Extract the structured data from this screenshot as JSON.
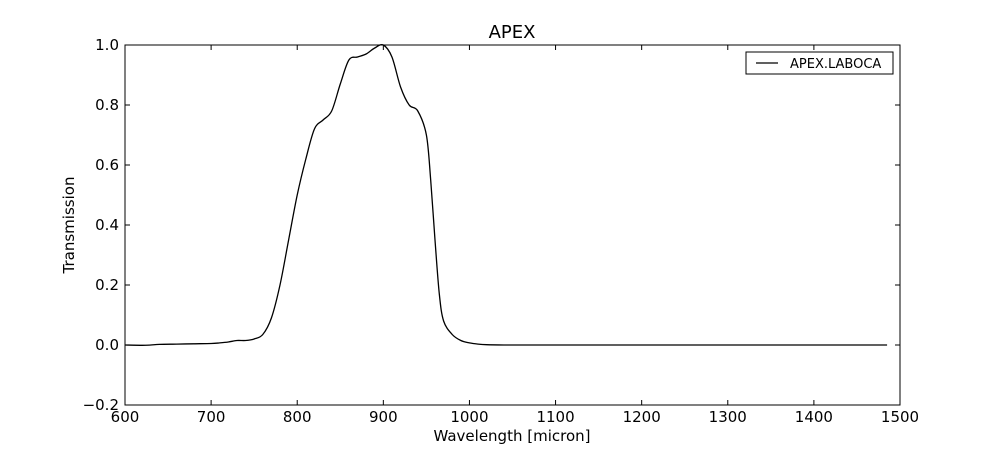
{
  "chart_data": {
    "type": "line",
    "title": "APEX",
    "xlabel": "Wavelength [micron]",
    "ylabel": "Transmission",
    "xlim": [
      600,
      1500
    ],
    "ylim": [
      -0.2,
      1.0
    ],
    "xticks": [
      "600",
      "700",
      "800",
      "900",
      "1000",
      "1100",
      "1200",
      "1300",
      "1400",
      "1500"
    ],
    "yticks": [
      "−0.2",
      "0.0",
      "0.2",
      "0.4",
      "0.6",
      "0.8",
      "1.0"
    ],
    "grid": false,
    "legend_position": "top-right",
    "series": [
      {
        "name": "APEX.LABOCA",
        "color": "#000000",
        "x": [
          600,
          620,
          630,
          640,
          660,
          680,
          700,
          710,
          720,
          730,
          740,
          750,
          760,
          770,
          780,
          790,
          800,
          810,
          820,
          830,
          840,
          850,
          860,
          870,
          880,
          890,
          900,
          910,
          920,
          930,
          940,
          950,
          955,
          960,
          965,
          970,
          980,
          990,
          1000,
          1010,
          1020,
          1040,
          1060,
          1100,
          1200,
          1300,
          1400,
          1485
        ],
        "y": [
          0.0,
          -0.001,
          0.0,
          0.002,
          0.003,
          0.004,
          0.005,
          0.007,
          0.01,
          0.015,
          0.015,
          0.02,
          0.035,
          0.09,
          0.2,
          0.35,
          0.5,
          0.62,
          0.72,
          0.75,
          0.78,
          0.87,
          0.95,
          0.96,
          0.97,
          0.99,
          1.0,
          0.96,
          0.86,
          0.8,
          0.78,
          0.7,
          0.55,
          0.35,
          0.17,
          0.08,
          0.035,
          0.015,
          0.007,
          0.003,
          0.001,
          0.0,
          0.0,
          0.0,
          0.0,
          0.0,
          0.0,
          0.0
        ]
      }
    ]
  }
}
